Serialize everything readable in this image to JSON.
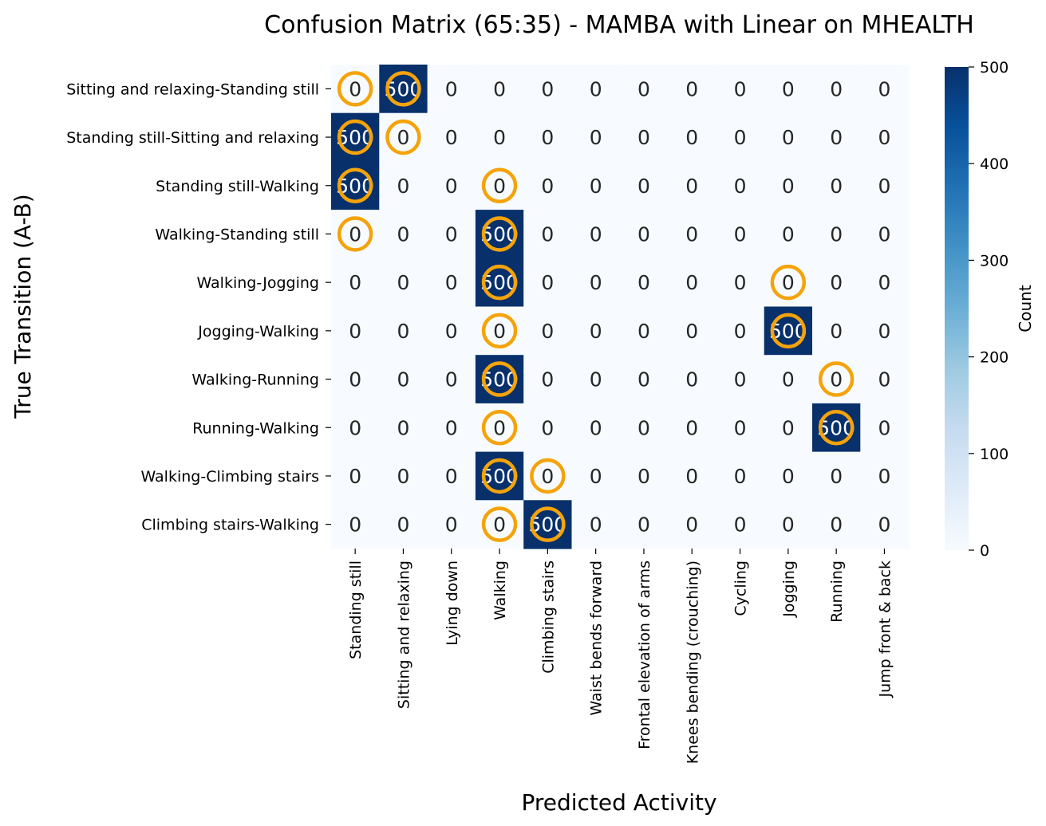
{
  "chart_data": {
    "type": "heatmap",
    "title": "Confusion Matrix (65:35) - MAMBA with Linear on MHEALTH",
    "xlabel": "Predicted Activity",
    "ylabel": "True Transition (A-B)",
    "colorbar_label": "Count",
    "colorbar_ticks": [
      0,
      100,
      200,
      300,
      400,
      500
    ],
    "vmin": 0,
    "vmax": 500,
    "colormap": "Blues",
    "colors": {
      "low": "#f7fbff",
      "high": "#08306b",
      "circle": "#f5a30a",
      "text_light": "#ffffff",
      "text_dark": "#262626"
    },
    "x_categories": [
      "Standing still",
      "Sitting and relaxing",
      "Lying down",
      "Walking",
      "Climbing stairs",
      "Waist bends forward",
      "Frontal elevation of arms",
      "Knees bending (crouching)",
      "Cycling",
      "Jogging",
      "Running",
      "Jump front & back"
    ],
    "y_categories": [
      "Sitting and relaxing-Standing still",
      "Standing still-Sitting and relaxing",
      "Standing still-Walking",
      "Walking-Standing still",
      "Walking-Jogging",
      "Jogging-Walking",
      "Walking-Running",
      "Running-Walking",
      "Walking-Climbing stairs",
      "Climbing stairs-Walking"
    ],
    "values": [
      [
        0,
        500,
        0,
        0,
        0,
        0,
        0,
        0,
        0,
        0,
        0,
        0
      ],
      [
        500,
        0,
        0,
        0,
        0,
        0,
        0,
        0,
        0,
        0,
        0,
        0
      ],
      [
        500,
        0,
        0,
        0,
        0,
        0,
        0,
        0,
        0,
        0,
        0,
        0
      ],
      [
        0,
        0,
        0,
        500,
        0,
        0,
        0,
        0,
        0,
        0,
        0,
        0
      ],
      [
        0,
        0,
        0,
        500,
        0,
        0,
        0,
        0,
        0,
        0,
        0,
        0
      ],
      [
        0,
        0,
        0,
        0,
        0,
        0,
        0,
        0,
        0,
        500,
        0,
        0
      ],
      [
        0,
        0,
        0,
        500,
        0,
        0,
        0,
        0,
        0,
        0,
        0,
        0
      ],
      [
        0,
        0,
        0,
        0,
        0,
        0,
        0,
        0,
        0,
        0,
        500,
        0
      ],
      [
        0,
        0,
        0,
        500,
        0,
        0,
        0,
        0,
        0,
        0,
        0,
        0
      ],
      [
        0,
        0,
        0,
        0,
        500,
        0,
        0,
        0,
        0,
        0,
        0,
        0
      ]
    ],
    "highlighted_cells": [
      [
        0,
        0
      ],
      [
        0,
        1
      ],
      [
        1,
        0
      ],
      [
        1,
        1
      ],
      [
        2,
        0
      ],
      [
        2,
        3
      ],
      [
        3,
        0
      ],
      [
        3,
        3
      ],
      [
        4,
        3
      ],
      [
        4,
        9
      ],
      [
        5,
        3
      ],
      [
        5,
        9
      ],
      [
        6,
        3
      ],
      [
        6,
        10
      ],
      [
        7,
        3
      ],
      [
        7,
        10
      ],
      [
        8,
        3
      ],
      [
        8,
        4
      ],
      [
        9,
        3
      ],
      [
        9,
        4
      ]
    ]
  }
}
